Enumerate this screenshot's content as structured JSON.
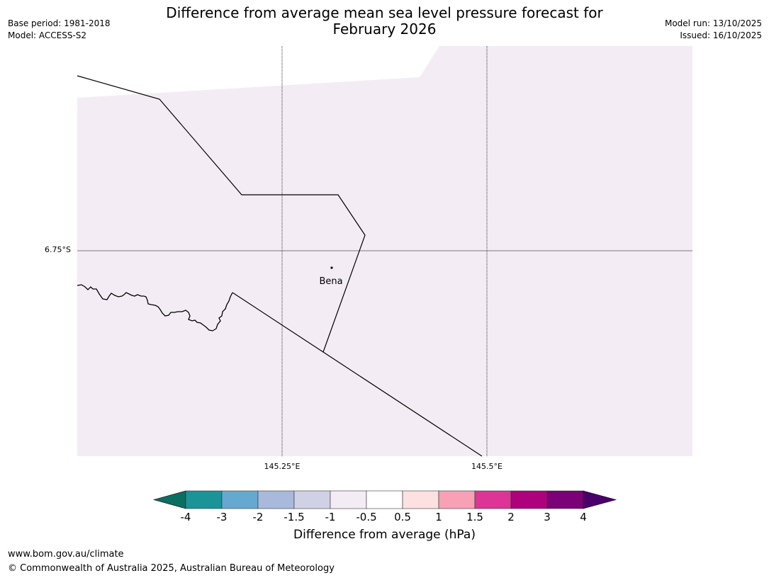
{
  "header": {
    "title_line1": "Difference from average mean sea level pressure forecast for",
    "title_line2": "February 2026",
    "base_period": "Base period: 1981-2018",
    "model": "Model: ACCESS-S2",
    "model_run": "Model run: 13/10/2025",
    "issued": "Issued: 16/10/2025"
  },
  "map": {
    "fill_color": "#f4ecf5",
    "place": {
      "name": "Bena"
    },
    "lat_labels": [
      "6.75°S"
    ],
    "lon_labels": [
      "145.25°E",
      "145.5°E"
    ]
  },
  "colorbar": {
    "label": "Difference from average (hPa)",
    "ticks": [
      "-4",
      "-3",
      "-2",
      "-1.5",
      "-1",
      "-0.5",
      "0.5",
      "1",
      "1.5",
      "2",
      "3",
      "4"
    ],
    "colors": [
      "#0b6e62",
      "#1a9399",
      "#66a9d0",
      "#a8b9db",
      "#d1d1e6",
      "#f4ecf5",
      "#ffffff",
      "#fde0e0",
      "#f7a0b6",
      "#dd3497",
      "#ae017e",
      "#7a0177",
      "#49006a"
    ]
  },
  "footer": {
    "url": "www.bom.gov.au/climate",
    "copyright": "© Commonwealth of Australia 2025, Australian Bureau of Meteorology"
  }
}
